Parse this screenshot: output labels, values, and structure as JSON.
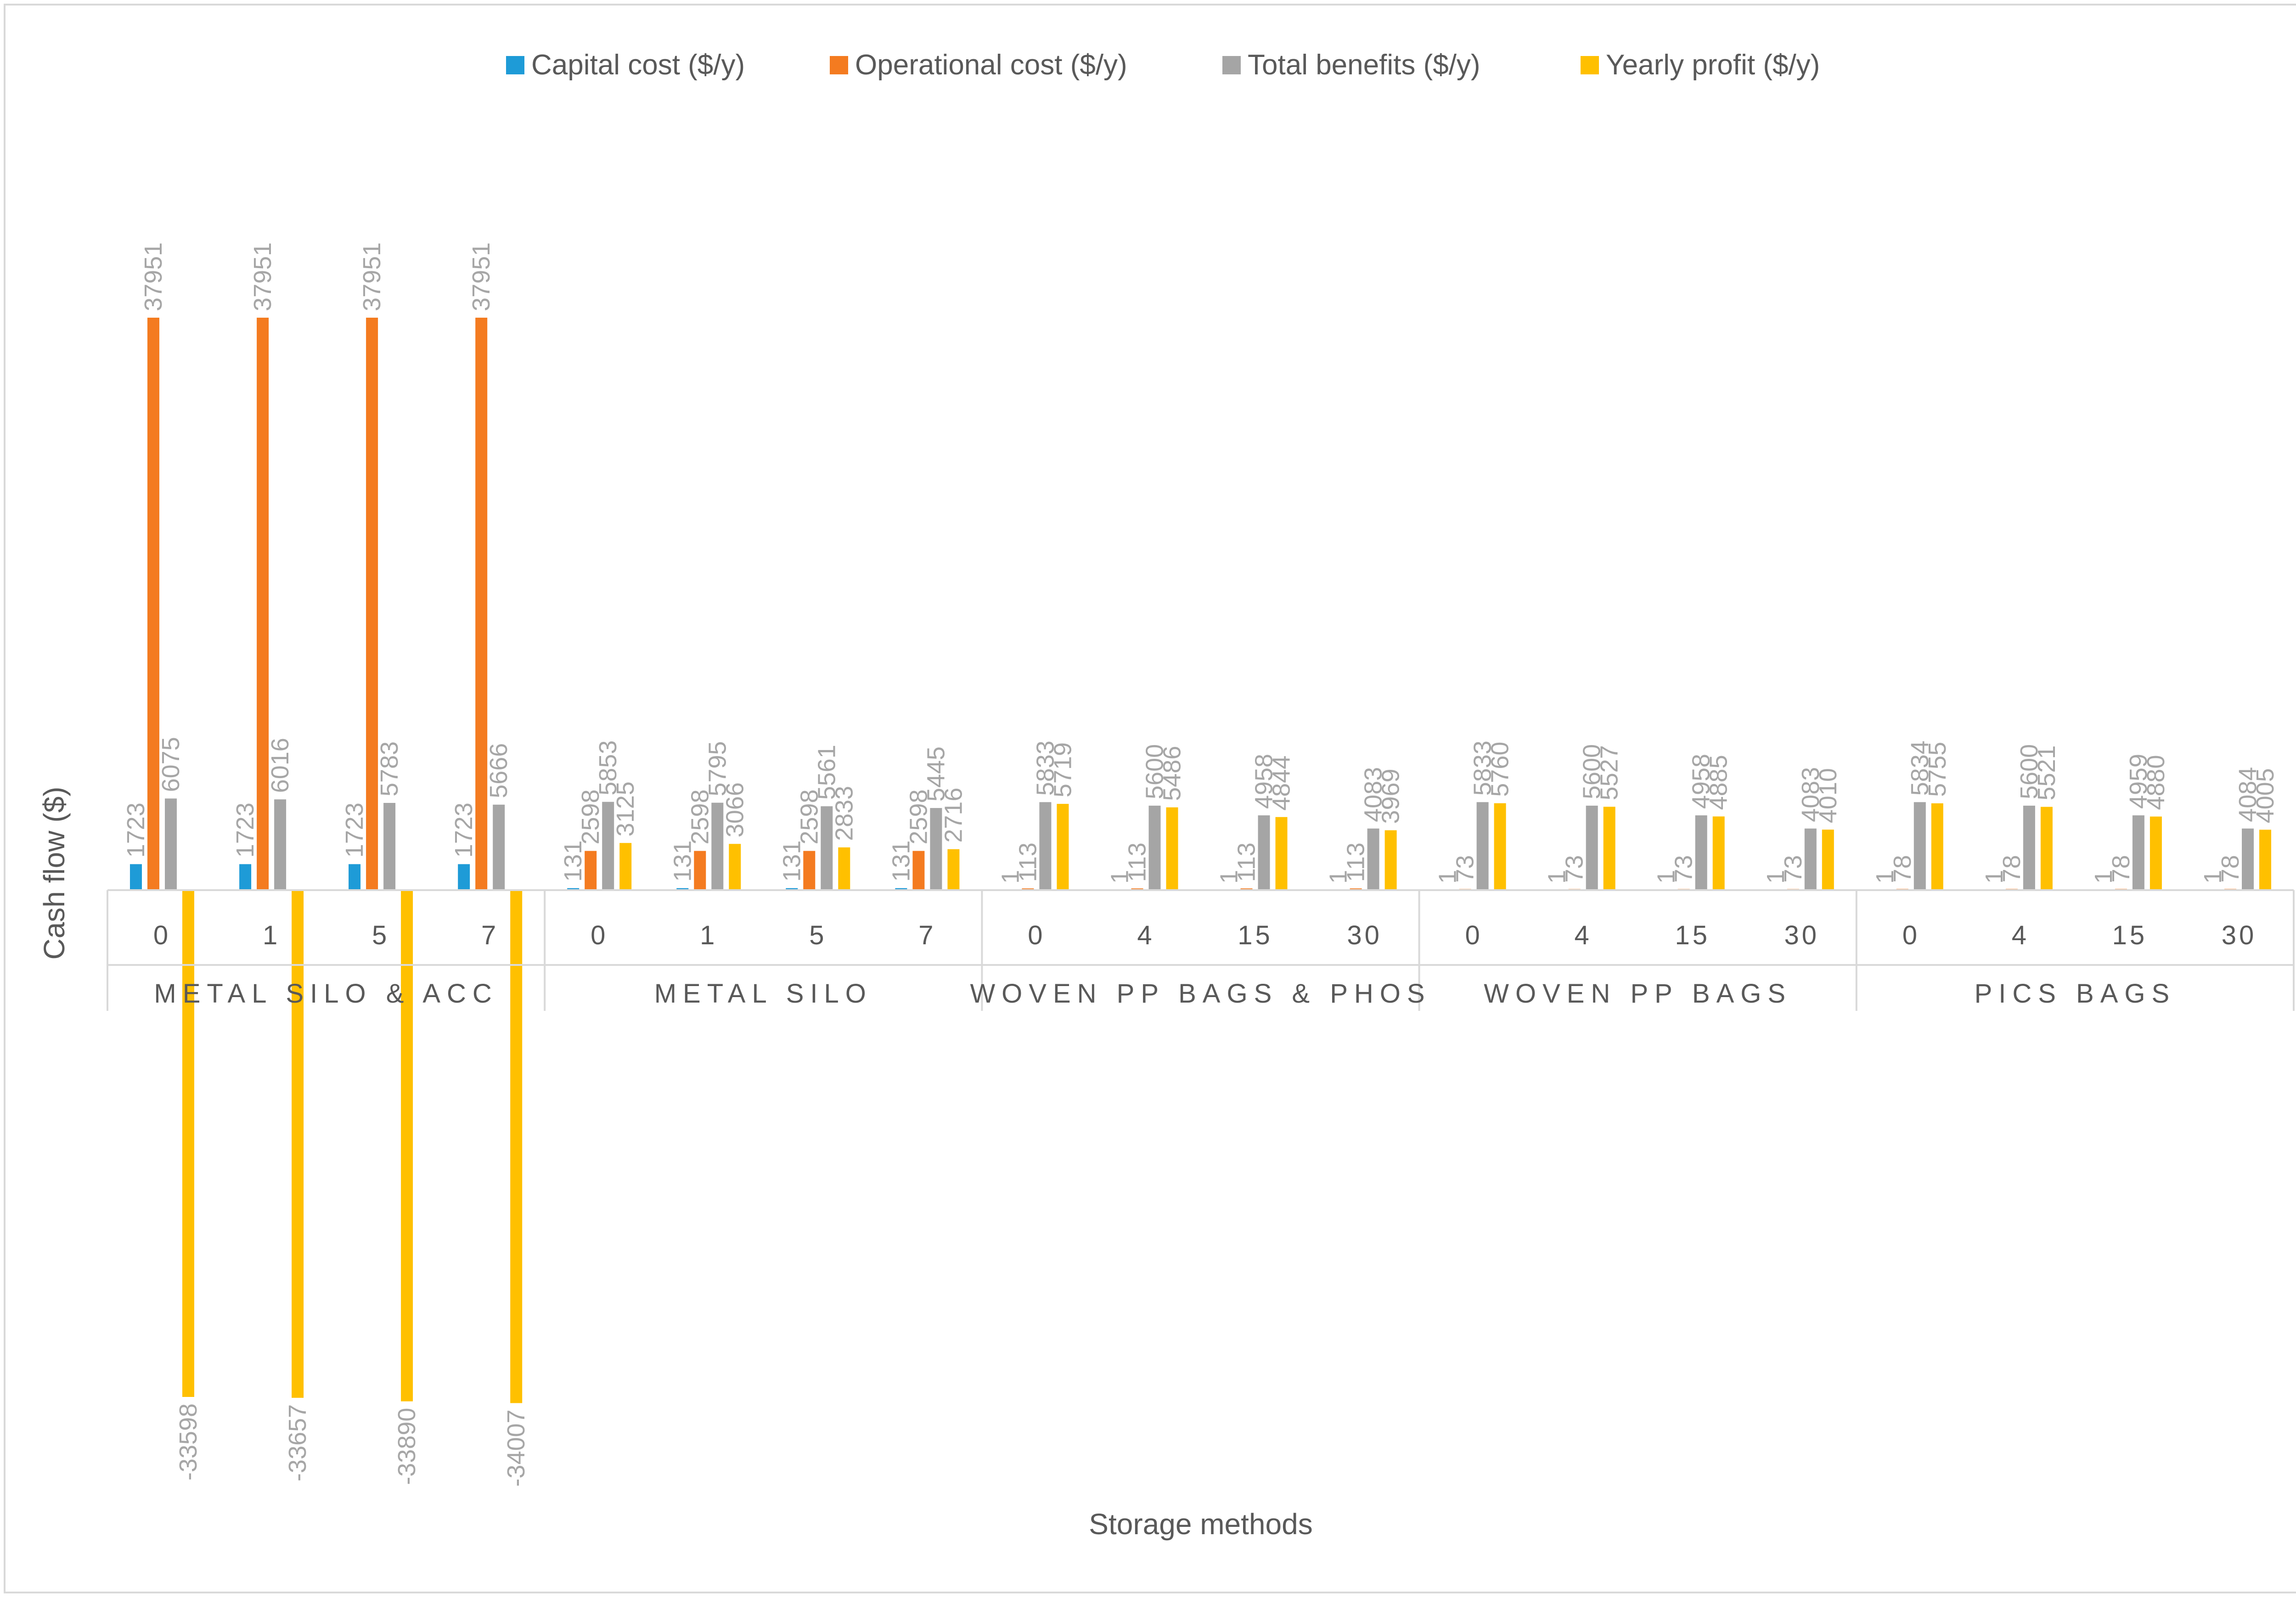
{
  "chart_data": {
    "type": "bar",
    "xlabel": "Storage methods",
    "ylabel": "Cash flow ($)",
    "legend_position": "top",
    "grid": false,
    "ylim": [
      -36000,
      40000
    ],
    "groups": [
      {
        "name": "METAL SILO & ACC",
        "categories": [
          "0",
          "1",
          "5",
          "7"
        ]
      },
      {
        "name": "METAL SILO",
        "categories": [
          "0",
          "1",
          "5",
          "7"
        ]
      },
      {
        "name": "WOVEN PP BAGS & PHOS",
        "categories": [
          "0",
          "4",
          "15",
          "30"
        ]
      },
      {
        "name": "WOVEN PP BAGS",
        "categories": [
          "0",
          "4",
          "15",
          "30"
        ]
      },
      {
        "name": "PICS BAGS",
        "categories": [
          "0",
          "4",
          "15",
          "30"
        ]
      }
    ],
    "series": [
      {
        "name": "Capital cost ($/y)",
        "color": "#1e9bd7",
        "values": [
          1723,
          1723,
          1723,
          1723,
          131,
          131,
          131,
          131,
          1,
          1,
          1,
          1,
          1,
          1,
          1,
          1,
          1,
          1,
          1,
          1
        ]
      },
      {
        "name": "Operational cost ($/y)",
        "color": "#f47b20",
        "values": [
          37951,
          37951,
          37951,
          37951,
          2598,
          2598,
          2598,
          2598,
          113,
          113,
          113,
          113,
          73,
          73,
          73,
          73,
          78,
          78,
          78,
          78
        ]
      },
      {
        "name": "Total benefits ($/y)",
        "color": "#a5a5a5",
        "values": [
          6075,
          6016,
          5783,
          5666,
          5853,
          5795,
          5561,
          5445,
          5833,
          5600,
          4958,
          4083,
          5833,
          5600,
          4958,
          4083,
          5834,
          5600,
          4959,
          4084
        ]
      },
      {
        "name": "Yearly profit ($/y)",
        "color": "#ffc000",
        "values": [
          -33598,
          -33657,
          -33890,
          -34007,
          3125,
          3066,
          2833,
          2716,
          5719,
          5486,
          4844,
          3969,
          5760,
          5527,
          4885,
          4010,
          5755,
          5521,
          4880,
          4005
        ]
      }
    ]
  }
}
